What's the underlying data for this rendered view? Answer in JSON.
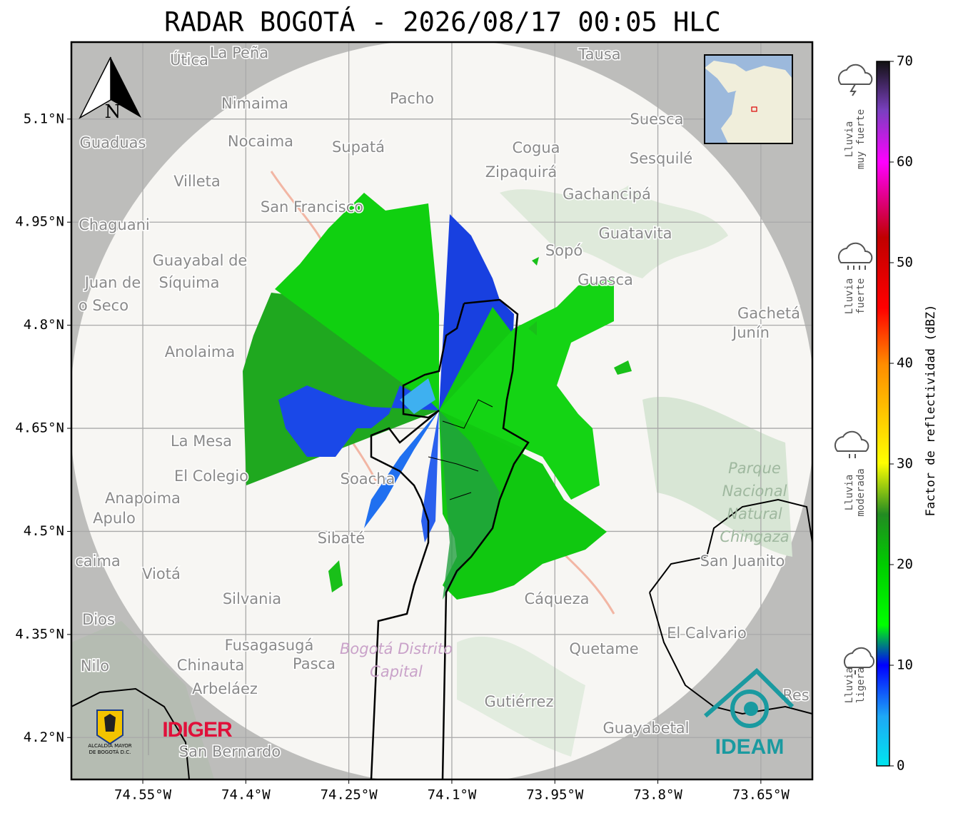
{
  "title": "RADAR BOGOTÁ - 2026/08/17 00:05 HLC",
  "map": {
    "xlim": [
      -74.654,
      -73.575
    ],
    "ylim": [
      4.139,
      5.212
    ],
    "xticks": [
      {
        "value": -74.55,
        "label": "74.55°W"
      },
      {
        "value": -74.4,
        "label": "74.4°W"
      },
      {
        "value": -74.25,
        "label": "74.25°W"
      },
      {
        "value": -74.1,
        "label": "74.1°W"
      },
      {
        "value": -73.95,
        "label": "73.95°W"
      },
      {
        "value": -73.8,
        "label": "73.8°W"
      },
      {
        "value": -73.65,
        "label": "73.65°W"
      }
    ],
    "yticks": [
      {
        "value": 5.1,
        "label": "5.1°N"
      },
      {
        "value": 4.95,
        "label": "4.95°N"
      },
      {
        "value": 4.8,
        "label": "4.8°N"
      },
      {
        "value": 4.65,
        "label": "4.65°N"
      },
      {
        "value": 4.5,
        "label": "4.5°N"
      },
      {
        "value": 4.35,
        "label": "4.35°N"
      },
      {
        "value": 4.2,
        "label": "4.2°N"
      }
    ],
    "north": "N",
    "places": [
      "Útica",
      "La Peña",
      "Tausa",
      "Pacho",
      "Nimaima",
      "Guaduas",
      "Nocaima",
      "Supatá",
      "Cogua",
      "Suesca",
      "Sesquilé",
      "Zipaquirá",
      "Villeta",
      "Gachancipá",
      "San Francisco",
      "Chaguani",
      "Guatavita",
      "Guayabal de",
      "Síquima",
      "Sopó",
      "Guasca",
      "Juan de",
      "o Seco",
      "Gachetá",
      "Junín",
      "Anolaima",
      "La Mesa",
      "El Colegio",
      "Anapoima",
      "Apulo",
      "Soacha",
      "Sibaté",
      "San Juanito",
      "caima",
      "Viotá",
      "Silvania",
      "Cáqueza",
      "Dios",
      "El Calvario",
      "Fusagasugá",
      "Quetame",
      "Nilo",
      "Chinauta",
      "Pasca",
      "Arbeláez",
      "Gutiérrez",
      "Guayabetal",
      "San Bernardo",
      "Res"
    ],
    "parks": [
      "Parque",
      "Nacional",
      "Natural",
      "Chingaza",
      "Bogotá Distrito",
      "Capital"
    ]
  },
  "colorbar": {
    "label": "Factor de reflectividad (dBZ)",
    "lim": [
      0,
      70
    ],
    "ticks": [
      0,
      10,
      20,
      30,
      40,
      50,
      60,
      70
    ]
  },
  "rain_levels": [
    {
      "lines": [
        "Lluvia",
        "muy fuerte"
      ]
    },
    {
      "lines": [
        "Lluvia",
        "fuerte"
      ]
    },
    {
      "lines": [
        "Lluvia",
        "moderada"
      ]
    },
    {
      "lines": [
        "Lluvia",
        "ligera"
      ]
    }
  ],
  "logos": {
    "alcaldia": [
      "ALCALDÍA MAYOR",
      "DE BOGOTÁ D.C."
    ],
    "idiger": "IDIGER",
    "ideam": "IDEAM"
  }
}
